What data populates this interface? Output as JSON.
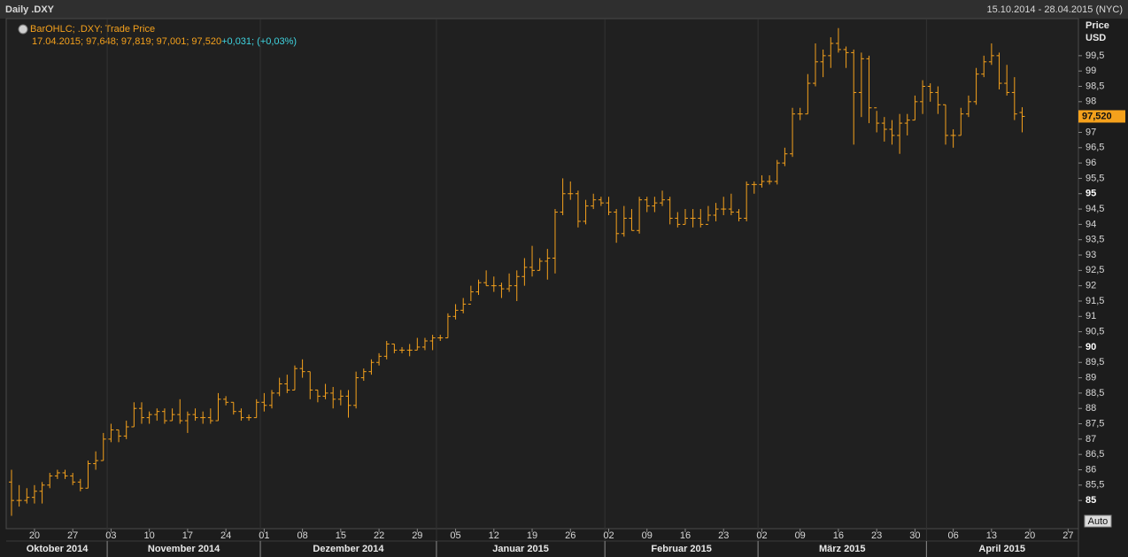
{
  "header": {
    "title": "Daily .DXY",
    "range": "15.10.2014 - 28.04.2015 (NYC)"
  },
  "chart_data": {
    "type": "ohlc",
    "legend_name": "BarOHLC; .DXY; Trade Price",
    "legend_values": "17.04.2015; 97,648; 97,819; 97,001; 97,520",
    "legend_change": "+0,031; (+0,03%)",
    "y_label": "Price",
    "y_unit": "USD",
    "last_value_label": "97,520",
    "auto_label": "Auto",
    "color": "#f5a11c",
    "x": [
      "2014-10-15",
      "2014-10-16",
      "2014-10-17",
      "2014-10-20",
      "2014-10-21",
      "2014-10-22",
      "2014-10-23",
      "2014-10-24",
      "2014-10-27",
      "2014-10-28",
      "2014-10-29",
      "2014-10-30",
      "2014-10-31",
      "2014-11-03",
      "2014-11-04",
      "2014-11-05",
      "2014-11-06",
      "2014-11-07",
      "2014-11-10",
      "2014-11-11",
      "2014-11-12",
      "2014-11-13",
      "2014-11-14",
      "2014-11-17",
      "2014-11-18",
      "2014-11-19",
      "2014-11-20",
      "2014-11-21",
      "2014-11-24",
      "2014-11-25",
      "2014-11-26",
      "2014-11-27",
      "2014-11-28",
      "2014-12-01",
      "2014-12-02",
      "2014-12-03",
      "2014-12-04",
      "2014-12-05",
      "2014-12-08",
      "2014-12-09",
      "2014-12-10",
      "2014-12-11",
      "2014-12-12",
      "2014-12-15",
      "2014-12-16",
      "2014-12-17",
      "2014-12-18",
      "2014-12-19",
      "2014-12-22",
      "2014-12-23",
      "2014-12-24",
      "2014-12-25",
      "2014-12-26",
      "2014-12-29",
      "2014-12-30",
      "2014-12-31",
      "2015-01-01",
      "2015-01-02",
      "2015-01-05",
      "2015-01-06",
      "2015-01-07",
      "2015-01-08",
      "2015-01-09",
      "2015-01-12",
      "2015-01-13",
      "2015-01-14",
      "2015-01-15",
      "2015-01-16",
      "2015-01-19",
      "2015-01-20",
      "2015-01-21",
      "2015-01-22",
      "2015-01-23",
      "2015-01-26",
      "2015-01-27",
      "2015-01-28",
      "2015-01-29",
      "2015-01-30",
      "2015-02-02",
      "2015-02-03",
      "2015-02-04",
      "2015-02-05",
      "2015-02-06",
      "2015-02-09",
      "2015-02-10",
      "2015-02-11",
      "2015-02-12",
      "2015-02-13",
      "2015-02-16",
      "2015-02-17",
      "2015-02-18",
      "2015-02-19",
      "2015-02-20",
      "2015-02-23",
      "2015-02-24",
      "2015-02-25",
      "2015-02-26",
      "2015-02-27",
      "2015-03-02",
      "2015-03-03",
      "2015-03-04",
      "2015-03-05",
      "2015-03-06",
      "2015-03-09",
      "2015-03-10",
      "2015-03-11",
      "2015-03-12",
      "2015-03-13",
      "2015-03-16",
      "2015-03-17",
      "2015-03-18",
      "2015-03-19",
      "2015-03-20",
      "2015-03-23",
      "2015-03-24",
      "2015-03-25",
      "2015-03-26",
      "2015-03-27",
      "2015-03-30",
      "2015-03-31",
      "2015-04-01",
      "2015-04-02",
      "2015-04-03",
      "2015-04-06",
      "2015-04-07",
      "2015-04-08",
      "2015-04-09",
      "2015-04-10",
      "2015-04-13",
      "2015-04-14",
      "2015-04-15",
      "2015-04-16",
      "2015-04-17"
    ],
    "open": [
      85.6,
      85.0,
      85.0,
      85.1,
      85.3,
      85.5,
      85.8,
      85.9,
      85.8,
      85.6,
      85.4,
      86.2,
      86.3,
      87.0,
      87.3,
      87.1,
      87.4,
      88.0,
      87.7,
      87.8,
      87.9,
      87.6,
      87.8,
      87.6,
      87.8,
      87.7,
      87.7,
      87.6,
      88.3,
      88.2,
      87.9,
      87.7,
      87.7,
      88.2,
      88.1,
      88.5,
      88.8,
      88.6,
      89.3,
      89.2,
      88.6,
      88.4,
      88.5,
      88.3,
      88.4,
      88.1,
      89.0,
      89.2,
      89.5,
      89.7,
      90.1,
      89.9,
      89.9,
      89.9,
      90.0,
      90.2,
      90.3,
      90.3,
      91.0,
      91.2,
      91.4,
      91.8,
      92.1,
      92.0,
      92.0,
      91.9,
      92.0,
      92.3,
      92.6,
      92.5,
      92.8,
      92.9,
      94.4,
      95.0,
      95.0,
      94.1,
      94.6,
      94.8,
      94.7,
      94.4,
      93.7,
      94.2,
      93.8,
      94.8,
      94.6,
      94.7,
      94.8,
      94.2,
      94.0,
      94.2,
      94.2,
      94.0,
      94.3,
      94.5,
      94.5,
      94.4,
      94.2,
      95.3,
      95.3,
      95.4,
      95.4,
      96.0,
      96.3,
      97.6,
      97.6,
      98.6,
      99.3,
      99.5,
      99.9,
      99.7,
      99.6,
      98.3,
      99.4,
      97.8,
      97.3,
      97.1,
      96.9,
      97.3,
      97.4,
      98.0,
      98.5,
      98.3,
      97.9,
      96.9,
      96.9,
      97.6,
      98.0,
      98.9,
      99.3,
      99.5,
      98.6,
      98.3,
      97.648
    ],
    "high": [
      86.0,
      85.5,
      85.4,
      85.5,
      85.6,
      85.9,
      86.0,
      86.0,
      85.9,
      85.7,
      86.3,
      86.6,
      87.2,
      87.5,
      87.3,
      87.6,
      88.2,
      88.2,
      87.9,
      88.0,
      88.0,
      88.0,
      88.3,
      87.9,
      88.0,
      87.9,
      88.0,
      88.5,
      88.4,
      88.2,
      88.0,
      87.8,
      88.3,
      88.5,
      88.6,
      89.0,
      89.1,
      89.4,
      89.6,
      89.2,
      88.6,
      88.8,
      88.7,
      88.6,
      88.6,
      89.2,
      89.3,
      89.6,
      89.8,
      90.2,
      90.1,
      90.0,
      90.1,
      90.3,
      90.3,
      90.4,
      90.4,
      91.1,
      91.4,
      91.6,
      92.0,
      92.2,
      92.5,
      92.3,
      92.1,
      92.4,
      92.5,
      92.9,
      93.3,
      92.9,
      93.2,
      94.5,
      95.5,
      95.4,
      95.1,
      94.8,
      95.0,
      94.9,
      94.9,
      94.5,
      94.6,
      94.5,
      94.9,
      94.9,
      94.9,
      95.1,
      94.9,
      94.4,
      94.5,
      94.5,
      94.5,
      94.6,
      94.7,
      94.9,
      95.0,
      94.5,
      95.4,
      95.4,
      95.6,
      95.6,
      96.1,
      96.5,
      97.8,
      97.8,
      98.9,
      99.9,
      99.7,
      100.1,
      100.4,
      99.8,
      99.7,
      99.6,
      99.5,
      97.7,
      97.5,
      97.4,
      97.6,
      97.6,
      98.2,
      98.7,
      98.6,
      98.5,
      97.9,
      97.1,
      97.8,
      98.2,
      99.1,
      99.5,
      99.9,
      99.6,
      99.2,
      98.8,
      97.819
    ],
    "low": [
      84.5,
      84.8,
      84.9,
      84.9,
      84.9,
      85.4,
      85.7,
      85.7,
      85.5,
      85.3,
      85.4,
      86.0,
      86.3,
      86.9,
      86.9,
      87.0,
      87.4,
      87.5,
      87.5,
      87.6,
      87.5,
      87.6,
      87.5,
      87.2,
      87.6,
      87.5,
      87.5,
      87.6,
      88.1,
      87.8,
      87.6,
      87.6,
      87.7,
      87.9,
      88.0,
      88.4,
      88.5,
      88.6,
      89.0,
      88.3,
      88.2,
      88.3,
      88.0,
      88.1,
      87.7,
      88.0,
      88.9,
      89.1,
      89.4,
      89.6,
      89.8,
      89.8,
      89.7,
      89.9,
      89.9,
      89.9,
      90.2,
      90.3,
      90.9,
      91.1,
      91.5,
      91.7,
      92.0,
      91.8,
      91.6,
      91.8,
      91.5,
      92.0,
      92.3,
      92.5,
      92.2,
      92.4,
      94.3,
      94.8,
      93.9,
      94.0,
      94.5,
      94.6,
      94.3,
      93.4,
      93.6,
      93.8,
      93.7,
      94.4,
      94.4,
      94.6,
      94.0,
      93.9,
      94.0,
      93.9,
      93.9,
      94.1,
      94.1,
      94.3,
      94.3,
      94.1,
      94.1,
      95.0,
      95.2,
      95.3,
      95.3,
      95.9,
      96.2,
      97.4,
      97.6,
      98.5,
      98.8,
      99.1,
      99.6,
      99.1,
      96.6,
      97.5,
      97.3,
      97.0,
      96.7,
      96.6,
      96.3,
      96.9,
      97.4,
      97.6,
      98.0,
      97.6,
      96.6,
      96.5,
      96.9,
      97.5,
      97.9,
      98.8,
      99.2,
      98.4,
      98.2,
      97.4,
      97.001
    ],
    "close": [
      85.0,
      85.0,
      85.1,
      85.3,
      85.5,
      85.8,
      85.9,
      85.8,
      85.6,
      85.4,
      86.2,
      86.3,
      87.0,
      87.3,
      87.1,
      87.4,
      88.0,
      87.7,
      87.8,
      87.9,
      87.6,
      87.8,
      87.6,
      87.8,
      87.7,
      87.7,
      87.6,
      88.3,
      88.2,
      87.9,
      87.7,
      87.7,
      88.2,
      88.1,
      88.5,
      88.8,
      88.6,
      89.3,
      89.2,
      88.6,
      88.4,
      88.5,
      88.3,
      88.4,
      88.1,
      89.0,
      89.2,
      89.5,
      89.7,
      90.1,
      89.9,
      89.9,
      89.9,
      90.0,
      90.2,
      90.3,
      90.3,
      91.0,
      91.2,
      91.4,
      91.8,
      92.1,
      92.0,
      92.0,
      91.9,
      92.0,
      92.3,
      92.6,
      92.5,
      92.8,
      92.9,
      94.4,
      95.0,
      95.0,
      94.1,
      94.6,
      94.8,
      94.7,
      94.4,
      93.7,
      94.2,
      93.8,
      94.8,
      94.6,
      94.7,
      94.8,
      94.2,
      94.0,
      94.2,
      94.2,
      94.0,
      94.3,
      94.5,
      94.5,
      94.4,
      94.2,
      95.3,
      95.3,
      95.4,
      95.4,
      96.0,
      96.3,
      97.6,
      97.6,
      98.6,
      99.3,
      99.5,
      99.9,
      99.7,
      99.6,
      98.3,
      99.4,
      97.8,
      97.3,
      97.1,
      96.9,
      97.3,
      97.4,
      98.0,
      98.5,
      98.3,
      97.9,
      96.9,
      96.9,
      97.6,
      98.0,
      98.9,
      99.3,
      99.5,
      98.6,
      98.3,
      97.6,
      97.52
    ],
    "xlim": [
      "2014-10-15",
      "2015-04-28"
    ],
    "xticks": [
      {
        "value": "2014-10-20",
        "label": "20"
      },
      {
        "value": "2014-10-27",
        "label": "27"
      },
      {
        "value": "2014-11-03",
        "label": "03"
      },
      {
        "value": "2014-11-10",
        "label": "10"
      },
      {
        "value": "2014-11-17",
        "label": "17"
      },
      {
        "value": "2014-11-24",
        "label": "24"
      },
      {
        "value": "2014-12-01",
        "label": "01"
      },
      {
        "value": "2014-12-08",
        "label": "08"
      },
      {
        "value": "2014-12-15",
        "label": "15"
      },
      {
        "value": "2014-12-22",
        "label": "22"
      },
      {
        "value": "2014-12-29",
        "label": "29"
      },
      {
        "value": "2015-01-05",
        "label": "05"
      },
      {
        "value": "2015-01-12",
        "label": "12"
      },
      {
        "value": "2015-01-19",
        "label": "19"
      },
      {
        "value": "2015-01-26",
        "label": "26"
      },
      {
        "value": "2015-02-02",
        "label": "02"
      },
      {
        "value": "2015-02-09",
        "label": "09"
      },
      {
        "value": "2015-02-16",
        "label": "16"
      },
      {
        "value": "2015-02-23",
        "label": "23"
      },
      {
        "value": "2015-03-02",
        "label": "02"
      },
      {
        "value": "2015-03-09",
        "label": "09"
      },
      {
        "value": "2015-03-16",
        "label": "16"
      },
      {
        "value": "2015-03-23",
        "label": "23"
      },
      {
        "value": "2015-03-30",
        "label": "30"
      },
      {
        "value": "2015-04-06",
        "label": "06"
      },
      {
        "value": "2015-04-13",
        "label": "13"
      },
      {
        "value": "2015-04-20",
        "label": "20"
      },
      {
        "value": "2015-04-27",
        "label": "27"
      }
    ],
    "months": [
      {
        "value": "2014-10",
        "label": "Oktober 2014"
      },
      {
        "value": "2014-11",
        "label": "November 2014"
      },
      {
        "value": "2014-12",
        "label": "Dezember 2014"
      },
      {
        "value": "2015-01",
        "label": "Januar 2015"
      },
      {
        "value": "2015-02",
        "label": "Februar 2015"
      },
      {
        "value": "2015-03",
        "label": "März 2015"
      },
      {
        "value": "2015-04",
        "label": "April 2015"
      }
    ],
    "ylim": [
      84.08,
      100.68
    ],
    "yticks": [
      85,
      {
        "value": 85.5,
        "label": "85,5"
      },
      86,
      {
        "value": 86.5,
        "label": "86,5"
      },
      87,
      {
        "value": 87.5,
        "label": "87,5"
      },
      88,
      {
        "value": 88.5,
        "label": "88,5"
      },
      89,
      {
        "value": 89.5,
        "label": "89,5"
      },
      90,
      {
        "value": 90.5,
        "label": "90,5"
      },
      91,
      {
        "value": 91.5,
        "label": "91,5"
      },
      92,
      {
        "value": 92.5,
        "label": "92,5"
      },
      93,
      {
        "value": 93.5,
        "label": "93,5"
      },
      94,
      {
        "value": 94.5,
        "label": "94,5"
      },
      95,
      {
        "value": 95.5,
        "label": "95,5"
      },
      96,
      {
        "value": 96.5,
        "label": "96,5"
      },
      97,
      {
        "value": 97.5,
        "label": "97,5"
      },
      98,
      {
        "value": 98.5,
        "label": "98,5"
      },
      99,
      {
        "value": 99.5,
        "label": "99,5"
      }
    ]
  }
}
